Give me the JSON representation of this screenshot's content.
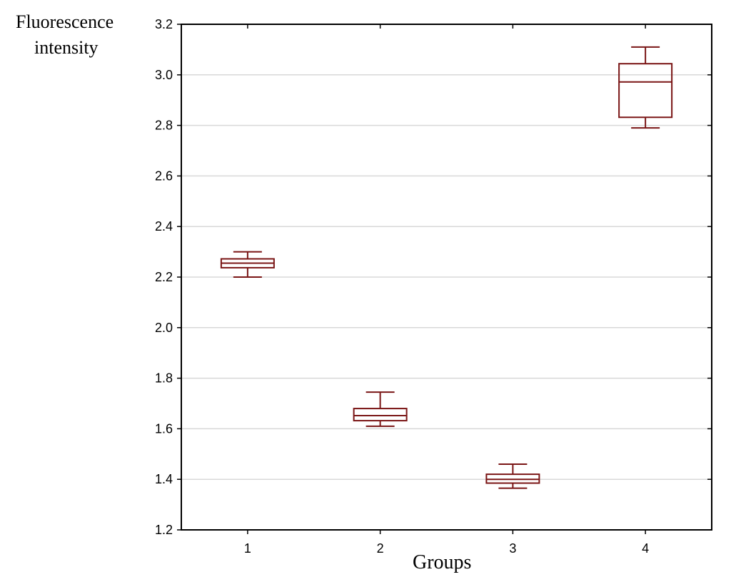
{
  "chart_data": {
    "type": "box",
    "ylabel_lines": [
      "Fluorescence",
      "intensity"
    ],
    "xlabel": "Groups",
    "ylim": [
      1.2,
      3.2
    ],
    "yticks": [
      "1.2",
      "1.4",
      "1.6",
      "1.8",
      "2.0",
      "2.2",
      "2.4",
      "2.6",
      "2.8",
      "3.0",
      "3.2"
    ],
    "categories": [
      "1",
      "2",
      "3",
      "4"
    ],
    "boxes": [
      {
        "group": "1",
        "whisker_low": 2.2,
        "q1": 2.237,
        "median": 2.255,
        "q3": 2.272,
        "whisker_high": 2.3
      },
      {
        "group": "2",
        "whisker_low": 1.61,
        "q1": 1.632,
        "median": 1.652,
        "q3": 1.68,
        "whisker_high": 1.745
      },
      {
        "group": "3",
        "whisker_low": 1.365,
        "q1": 1.385,
        "median": 1.4,
        "q3": 1.42,
        "whisker_high": 1.46
      },
      {
        "group": "4",
        "whisker_low": 2.79,
        "q1": 2.832,
        "median": 2.972,
        "q3": 3.044,
        "whisker_high": 3.11
      }
    ],
    "grid": true,
    "box_color": "#7a1515",
    "grid_color": "#d8d8d8"
  }
}
